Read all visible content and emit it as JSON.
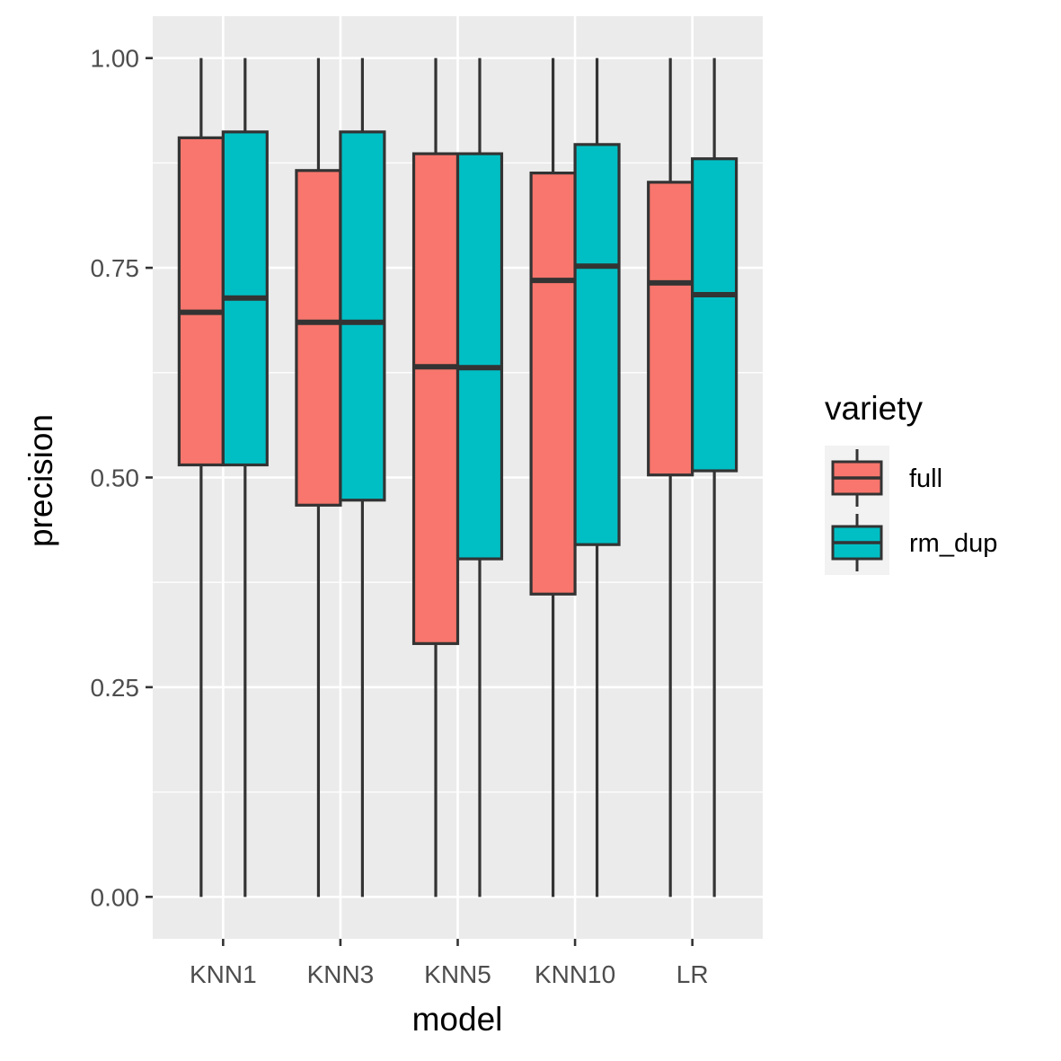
{
  "chart_data": {
    "type": "boxplot",
    "xlabel": "model",
    "ylabel": "precision",
    "categories": [
      "KNN1",
      "KNN3",
      "KNN5",
      "KNN10",
      "LR"
    ],
    "ylim": [
      -0.05,
      1.05
    ],
    "yticks": [
      "0.00",
      "0.25",
      "0.50",
      "0.75",
      "1.00"
    ],
    "ytick_values": [
      0,
      0.25,
      0.5,
      0.75,
      1.0
    ],
    "grid": true,
    "legend": {
      "title": "variety",
      "placement": "right"
    },
    "series": [
      {
        "name": "full",
        "color": "#F8766D",
        "boxes": [
          {
            "min": 0,
            "q1": 0.515,
            "median": 0.697,
            "q3": 0.905,
            "max": 1.0
          },
          {
            "min": 0,
            "q1": 0.467,
            "median": 0.685,
            "q3": 0.866,
            "max": 1.0
          },
          {
            "min": 0,
            "q1": 0.302,
            "median": 0.632,
            "q3": 0.886,
            "max": 1.0
          },
          {
            "min": 0,
            "q1": 0.361,
            "median": 0.735,
            "q3": 0.863,
            "max": 1.0
          },
          {
            "min": 0,
            "q1": 0.503,
            "median": 0.732,
            "q3": 0.852,
            "max": 1.0
          }
        ]
      },
      {
        "name": "rm_dup",
        "color": "#00BFC4",
        "boxes": [
          {
            "min": 0,
            "q1": 0.515,
            "median": 0.714,
            "q3": 0.912,
            "max": 1.0
          },
          {
            "min": 0,
            "q1": 0.473,
            "median": 0.685,
            "q3": 0.912,
            "max": 1.0
          },
          {
            "min": 0,
            "q1": 0.403,
            "median": 0.631,
            "q3": 0.886,
            "max": 1.0
          },
          {
            "min": 0,
            "q1": 0.42,
            "median": 0.752,
            "q3": 0.897,
            "max": 1.0
          },
          {
            "min": 0,
            "q1": 0.508,
            "median": 0.718,
            "q3": 0.88,
            "max": 1.0
          }
        ]
      }
    ]
  }
}
